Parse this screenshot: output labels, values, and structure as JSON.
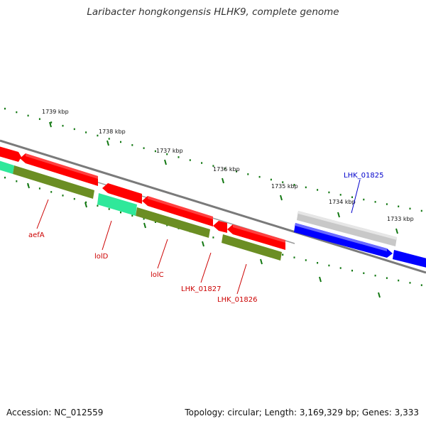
{
  "title": "Laribacter hongkongensis HLHK9, complete genome",
  "footer": {
    "accession": "Accession: NC_012559",
    "summary": "Topology: circular; Length: 3,169,329 bp; Genes: 3,333"
  },
  "scale_ticks": [
    "1739 kbp",
    "1738 kbp",
    "1737 kbp",
    "1736 kbp",
    "1735 kbp",
    "1734 kbp",
    "1733 kbp"
  ],
  "gene_labels": [
    {
      "text": "aefA",
      "color": "#cc0000"
    },
    {
      "text": "lolD",
      "color": "#cc0000"
    },
    {
      "text": "lolC",
      "color": "#cc0000"
    },
    {
      "text": "LHK_01827",
      "color": "#cc0000"
    },
    {
      "text": "LHK_01826",
      "color": "#cc0000"
    },
    {
      "text": "LHK_01825",
      "color": "#0000cc"
    }
  ],
  "colors": {
    "cds_reverse": "#ff0000",
    "cds_forward": "#0000ff",
    "rna_or_other": "#c8c8c8",
    "gene_track": "#6b8e23",
    "highlight": "#33ffaa",
    "backbone": "#888888",
    "tick": "#117711"
  }
}
